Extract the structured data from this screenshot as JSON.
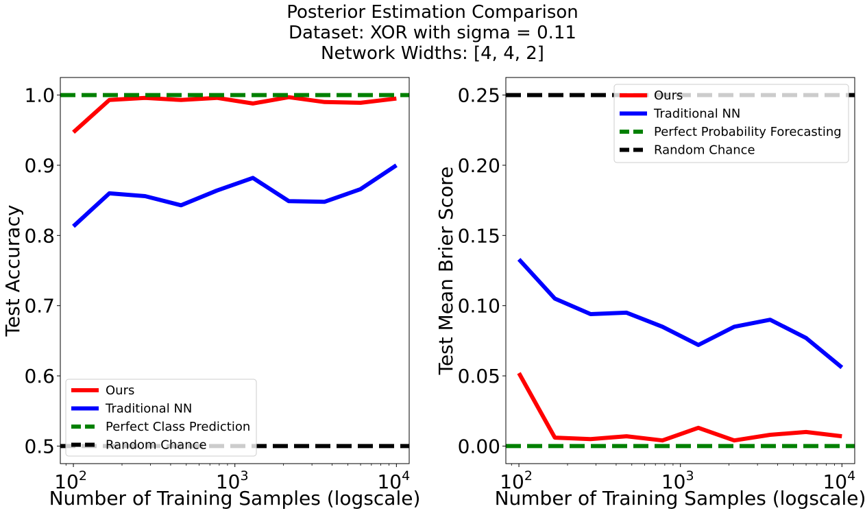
{
  "figure": {
    "title_lines": [
      "Posterior Estimation Comparison",
      "Dataset: XOR with sigma = 0.11",
      "Network Widths: [4, 4, 2]"
    ]
  },
  "colors": {
    "ours": "#ff0000",
    "traditional": "#0000ff",
    "perfect": "#008000",
    "random": "#000000",
    "legend_frame": "#cccccc"
  },
  "chart_data": [
    {
      "type": "line",
      "xscale": "log",
      "xlim": [
        83,
        12000
      ],
      "ylim": [
        0.475,
        1.025
      ],
      "xlabel": "Number of Training Samples (logscale)",
      "ylabel": "Test Accuracy",
      "x_ticks": [
        {
          "value": 100,
          "base": "10",
          "exp": "2"
        },
        {
          "value": 1000,
          "base": "10",
          "exp": "3"
        },
        {
          "value": 10000,
          "base": "10",
          "exp": "4"
        }
      ],
      "y_ticks": [
        0.5,
        0.6,
        0.7,
        0.8,
        0.9,
        1.0
      ],
      "y_tick_labels": [
        "0.5",
        "0.6",
        "0.7",
        "0.8",
        "0.9",
        "1.0"
      ],
      "legend_position": "lower-left",
      "x": [
        100,
        167,
        278,
        464,
        774,
        1292,
        2154,
        3594,
        5995,
        10000
      ],
      "series": [
        {
          "name": "Ours",
          "color": "#ff0000",
          "style": "solid",
          "values": [
            0.947,
            0.993,
            0.996,
            0.993,
            0.996,
            0.988,
            0.997,
            0.99,
            0.989,
            0.995
          ]
        },
        {
          "name": "Traditional NN",
          "color": "#0000ff",
          "style": "solid",
          "values": [
            0.813,
            0.86,
            0.856,
            0.843,
            0.864,
            0.882,
            0.849,
            0.848,
            0.866,
            0.9
          ]
        },
        {
          "name": "Perfect Class Prediction",
          "color": "#008000",
          "style": "dashed",
          "constant": 1.0
        },
        {
          "name": "Random Chance",
          "color": "#000000",
          "style": "dashed",
          "constant": 0.5
        }
      ]
    },
    {
      "type": "line",
      "xscale": "log",
      "xlim": [
        83,
        12000
      ],
      "ylim": [
        -0.0125,
        0.2625
      ],
      "xlabel": "Number of Training Samples (logscale)",
      "ylabel": "Test Mean Brier Score",
      "x_ticks": [
        {
          "value": 100,
          "base": "10",
          "exp": "2"
        },
        {
          "value": 1000,
          "base": "10",
          "exp": "3"
        },
        {
          "value": 10000,
          "base": "10",
          "exp": "4"
        }
      ],
      "y_ticks": [
        0.0,
        0.05,
        0.1,
        0.15,
        0.2,
        0.25
      ],
      "y_tick_labels": [
        "0.00",
        "0.05",
        "0.10",
        "0.15",
        "0.20",
        "0.25"
      ],
      "legend_position": "upper-right",
      "x": [
        100,
        167,
        278,
        464,
        774,
        1292,
        2154,
        3594,
        5995,
        10000
      ],
      "series": [
        {
          "name": "Ours",
          "color": "#ff0000",
          "style": "solid",
          "values": [
            0.052,
            0.006,
            0.005,
            0.007,
            0.004,
            0.013,
            0.004,
            0.008,
            0.01,
            0.007
          ]
        },
        {
          "name": "Traditional NN",
          "color": "#0000ff",
          "style": "solid",
          "values": [
            0.133,
            0.105,
            0.094,
            0.095,
            0.085,
            0.072,
            0.085,
            0.09,
            0.077,
            0.056
          ]
        },
        {
          "name": "Perfect Probability Forecasting",
          "color": "#008000",
          "style": "dashed",
          "constant": 0.0
        },
        {
          "name": "Random Chance",
          "color": "#000000",
          "style": "dashed",
          "constant": 0.25
        }
      ]
    }
  ]
}
